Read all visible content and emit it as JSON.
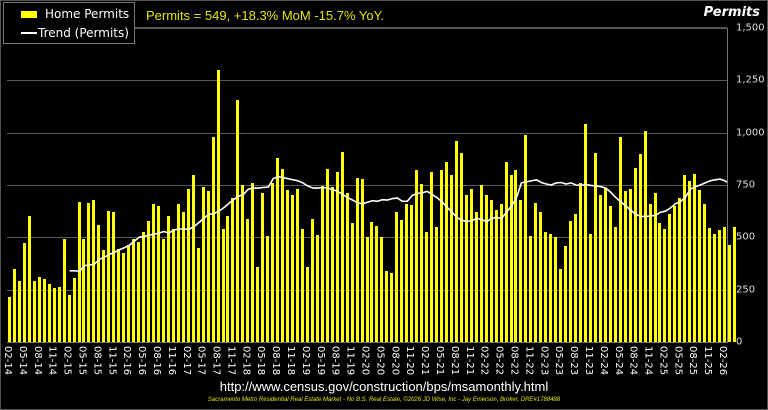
{
  "legend": {
    "items": [
      {
        "label": "Home Permits",
        "color": "#ffff00",
        "type": "bar"
      },
      {
        "label": "Trend (Permits)",
        "color": "#ffffff",
        "type": "line"
      }
    ]
  },
  "headline": "Permits = 549, +18.3% MoM -15.7% YoY.",
  "footer": {
    "source": "http://www.census.gov/construction/bps/msamonthly.html",
    "credit": "Sacramento Metro Residential Real Estate Market - No B.S. Real Estate, ©2026 JD Wise, Inc - Jay Emerson, Broker, DRE#1788488"
  },
  "colors": {
    "bar": "#ffff00",
    "trend": "#ffffff",
    "background": "#000000",
    "grid": "#5a5a5a",
    "headline": "#e6e600"
  },
  "chart_data": {
    "type": "bar",
    "title": "Permits = 549, +18.3% MoM -15.7% YoY.",
    "ylabel": "Permits",
    "xlabel": "",
    "ylim": [
      0,
      1500
    ],
    "yticks": [
      "0",
      "250",
      "500",
      "750",
      "1,000",
      "1,250",
      "1,500"
    ],
    "ytick_values": [
      0,
      250,
      500,
      750,
      1000,
      1250,
      1500
    ],
    "grid": true,
    "legend_position": "top-left",
    "xtick_labels": [
      "02-14",
      "05-14",
      "08-14",
      "11-14",
      "02-15",
      "05-15",
      "08-15",
      "11-15",
      "02-16",
      "05-16",
      "08-16",
      "11-16",
      "02-17",
      "05-17",
      "08-17",
      "11-17",
      "02-18",
      "05-18",
      "08-18",
      "11-18",
      "02-19",
      "05-19",
      "08-19",
      "11-19",
      "02-20",
      "05-20",
      "08-20",
      "11-20",
      "02-21",
      "05-21",
      "08-21",
      "11-21",
      "02-22",
      "05-22",
      "08-22",
      "11-22",
      "02-23",
      "05-23",
      "08-23",
      "11-23",
      "02-24",
      "05-24",
      "08-24",
      "11-24",
      "02-25",
      "05-25",
      "08-25",
      "11-25",
      "02-26"
    ],
    "x_start": "02-14",
    "x_end": "01-26",
    "series": [
      {
        "name": "Home Permits",
        "type": "bar",
        "values": [
          215,
          350,
          290,
          475,
          600,
          290,
          310,
          300,
          275,
          260,
          265,
          490,
          225,
          305,
          670,
          490,
          665,
          680,
          560,
          440,
          625,
          620,
          445,
          425,
          465,
          490,
          480,
          525,
          580,
          660,
          650,
          490,
          600,
          540,
          660,
          620,
          730,
          800,
          450,
          740,
          720,
          980,
          1300,
          540,
          600,
          690,
          1155,
          750,
          590,
          760,
          360,
          710,
          505,
          760,
          880,
          825,
          725,
          700,
          730,
          540,
          360,
          590,
          510,
          745,
          825,
          740,
          810,
          910,
          710,
          570,
          785,
          780,
          500,
          575,
          555,
          500,
          340,
          330,
          620,
          585,
          660,
          655,
          820,
          755,
          525,
          810,
          550,
          820,
          860,
          800,
          960,
          905,
          700,
          730,
          620,
          750,
          700,
          680,
          630,
          660,
          860,
          800,
          820,
          680,
          990,
          505,
          665,
          620,
          525,
          515,
          500,
          350,
          460,
          580,
          610,
          760,
          1040,
          515,
          905,
          700,
          735,
          650,
          550,
          980,
          720,
          730,
          830,
          900,
          1010,
          660,
          710,
          570,
          540,
          610,
          650,
          690,
          800,
          770,
          805,
          725,
          660,
          545,
          515,
          535,
          550,
          465,
          549
        ]
      },
      {
        "name": "Trend (Permits)",
        "type": "line",
        "start_index": 12,
        "values": [
          340,
          340,
          338,
          365,
          368,
          372,
          395,
          405,
          418,
          428,
          440,
          450,
          462,
          480,
          500,
          505,
          510,
          515,
          520,
          528,
          520,
          535,
          540,
          540,
          538,
          550,
          570,
          590,
          610,
          612,
          625,
          640,
          660,
          680,
          695,
          705,
          730,
          735,
          735,
          738,
          740,
          780,
          790,
          785,
          780,
          775,
          770,
          760,
          745,
          735,
          735,
          738,
          735,
          728,
          720,
          705,
          690,
          678,
          665,
          660,
          668,
          675,
          672,
          680,
          678,
          685,
          688,
          672,
          672,
          700,
          710,
          712,
          720,
          705,
          690,
          670,
          645,
          620,
          595,
          582,
          575,
          580,
          590,
          585,
          575,
          590,
          595,
          590,
          620,
          650,
          690,
          760,
          765,
          770,
          775,
          762,
          755,
          750,
          760,
          762,
          755,
          760,
          750,
          748,
          752,
          748,
          745,
          742,
          735,
          715,
          690,
          670,
          650,
          630,
          610,
          600,
          600,
          602,
          605,
          620,
          625,
          640,
          660,
          670,
          690,
          730,
          742,
          750,
          760,
          770,
          775,
          778,
          770,
          755,
          745,
          738,
          740,
          748,
          728,
          715,
          730,
          735,
          730,
          712,
          688,
          676,
          660,
          650,
          645,
          638,
          630,
          625,
          612
        ]
      }
    ]
  }
}
